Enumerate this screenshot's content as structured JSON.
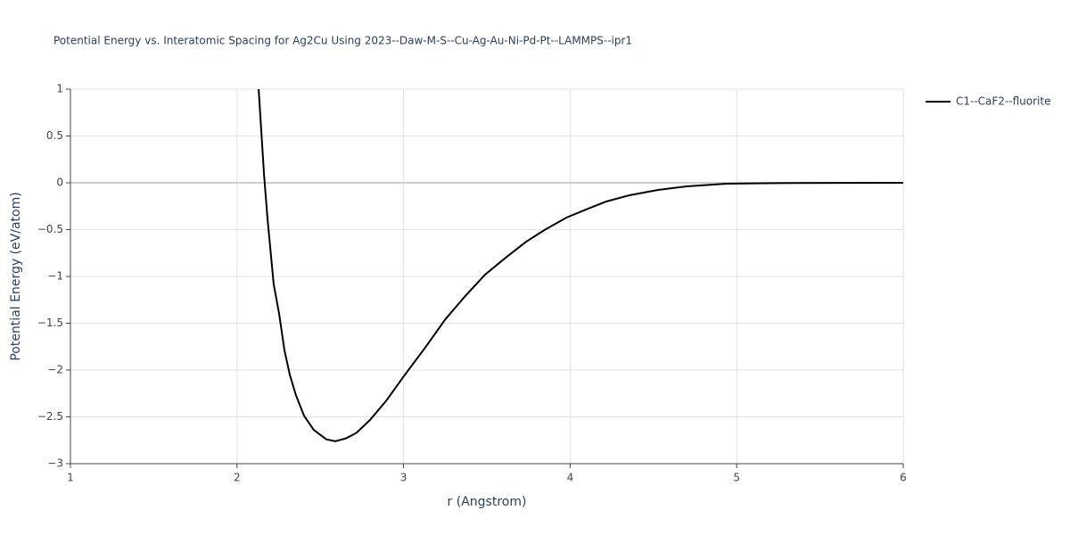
{
  "chart_data": {
    "type": "line",
    "title": "Potential Energy vs. Interatomic Spacing for Ag2Cu Using 2023--Daw-M-S--Cu-Ag-Au-Ni-Pd-Pt--LAMMPS--ipr1",
    "x_label": "r (Angstrom)",
    "y_label": "Potential Energy (eV/atom)",
    "xlim": [
      1,
      6
    ],
    "ylim": [
      -3,
      1
    ],
    "xticks": [
      1,
      2,
      3,
      4,
      5,
      6
    ],
    "yticks": [
      {
        "value": -3,
        "label": "−3"
      },
      {
        "value": -2.5,
        "label": "−2.5"
      },
      {
        "value": -2,
        "label": "−2"
      },
      {
        "value": -1.5,
        "label": "−1.5"
      },
      {
        "value": -1,
        "label": "−1"
      },
      {
        "value": -0.5,
        "label": "−0.5"
      },
      0,
      0.5,
      1
    ],
    "grid": true,
    "legend_position": "right",
    "x": [
      2.13,
      2.162,
      2.183,
      2.22,
      2.253,
      2.285,
      2.317,
      2.354,
      2.403,
      2.461,
      2.536,
      2.59,
      2.654,
      2.718,
      2.8,
      2.895,
      3.0,
      3.13,
      3.25,
      3.37,
      3.49,
      3.62,
      3.735,
      3.85,
      3.98,
      4.094,
      4.217,
      4.356,
      4.528,
      4.7,
      4.94,
      5.23,
      5.61,
      6.0
    ],
    "series": [
      {
        "name": "C1--CaF2--fluorite",
        "color": "#000000",
        "values": [
          1,
          0.095,
          -0.38,
          -1.08,
          -1.4,
          -1.79,
          -2.05,
          -2.27,
          -2.49,
          -2.64,
          -2.74,
          -2.76,
          -2.73,
          -2.67,
          -2.53,
          -2.33,
          -2.07,
          -1.76,
          -1.46,
          -1.21,
          -0.98,
          -0.79,
          -0.63,
          -0.5,
          -0.37,
          -0.286,
          -0.2,
          -0.133,
          -0.076,
          -0.038,
          -0.01,
          -0.003,
          -0.001,
          0
        ]
      }
    ]
  }
}
